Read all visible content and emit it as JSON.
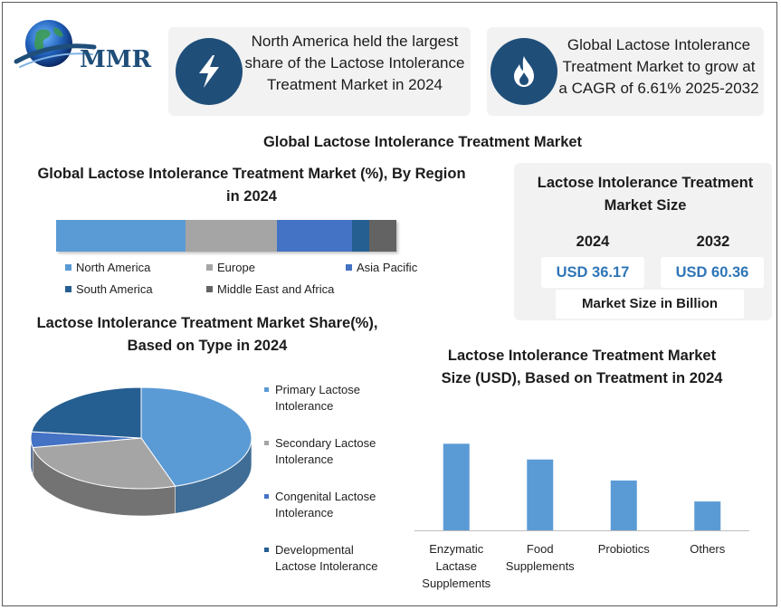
{
  "logo": {
    "text": "MMR"
  },
  "cards": [
    {
      "icon": "lightning-bolt-icon",
      "text": "North America held the largest share of the Lactose Intolerance Treatment Market in 2024"
    },
    {
      "icon": "flame-icon",
      "text": "Global Lactose Intolerance Treatment Market to grow at a CAGR of 6.61% 2025-2032"
    }
  ],
  "main_title": "Global Lactose Intolerance Treatment Market",
  "market_size": {
    "title": "Lactose Intolerance Treatment Market Size",
    "years": [
      "2024",
      "2032"
    ],
    "values": [
      "USD 36.17",
      "USD 60.36"
    ],
    "note": "Market Size in Billion"
  },
  "colors": {
    "accent_dark": "#1f4e79",
    "value_blue": "#2e75b6"
  },
  "chart_data": [
    {
      "type": "bar",
      "orientation": "horizontal-stacked",
      "title": "Global Lactose Intolerance Treatment Market (%), By Region in 2024",
      "unit": "%",
      "series": [
        {
          "name": "North America",
          "value": 38,
          "color": "#5b9bd5"
        },
        {
          "name": "Europe",
          "value": 27,
          "color": "#a5a5a5"
        },
        {
          "name": "Asia Pacific",
          "value": 22,
          "color": "#4472c4"
        },
        {
          "name": "South America",
          "value": 5,
          "color": "#255e91"
        },
        {
          "name": "Middle East and Africa",
          "value": 8,
          "color": "#636363"
        }
      ],
      "legend": "bottom"
    },
    {
      "type": "pie",
      "style": "3d",
      "title": "Lactose Intolerance Treatment Market Share(%), Based on Type in 2024",
      "slices": [
        {
          "name": "Primary Lactose Intolerance",
          "value": 45,
          "color": "#5b9bd5"
        },
        {
          "name": "Secondary Lactose Intolerance",
          "value": 27,
          "color": "#a5a5a5"
        },
        {
          "name": "Congenital Lactose Intolerance",
          "value": 5,
          "color": "#4472c4"
        },
        {
          "name": "Developmental Lactose Intolerance",
          "value": 23,
          "color": "#255e91"
        }
      ],
      "legend": "right"
    },
    {
      "type": "bar",
      "title": "Lactose Intolerance Treatment Market Size (USD), Based on Treatment in 2024",
      "categories": [
        "Enzymatic Lactase Supplements",
        "Food Supplements",
        "Probiotics",
        "Others"
      ],
      "values": [
        16.5,
        13.5,
        9.5,
        5.5
      ],
      "ylim": [
        0,
        20
      ],
      "color": "#5b9bd5",
      "grid": false
    }
  ]
}
